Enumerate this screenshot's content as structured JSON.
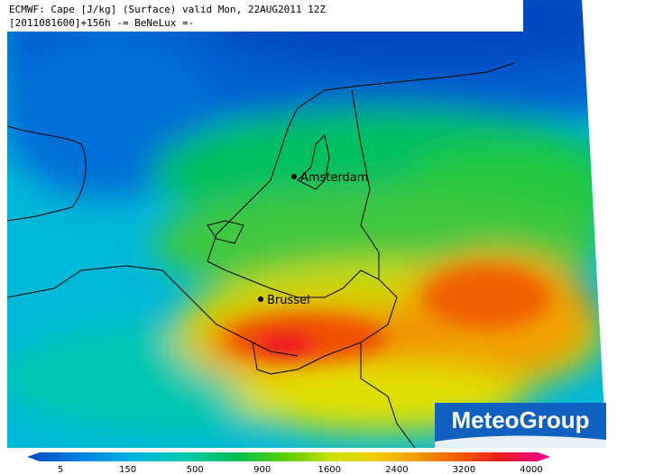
{
  "header": {
    "line1": "ECMWF: Cape [J/kg] (Surface) valid Mon, 22AUG2011 12Z",
    "line2": "[2011081600]+156h -= BeNeLux =-"
  },
  "cities": [
    {
      "label": "Amsterdam"
    },
    {
      "label": "Brussel"
    }
  ],
  "logo": "MeteoGroup",
  "legend": {
    "labels": [
      5,
      150,
      500,
      900,
      1600,
      2400,
      3200,
      4000
    ]
  }
}
